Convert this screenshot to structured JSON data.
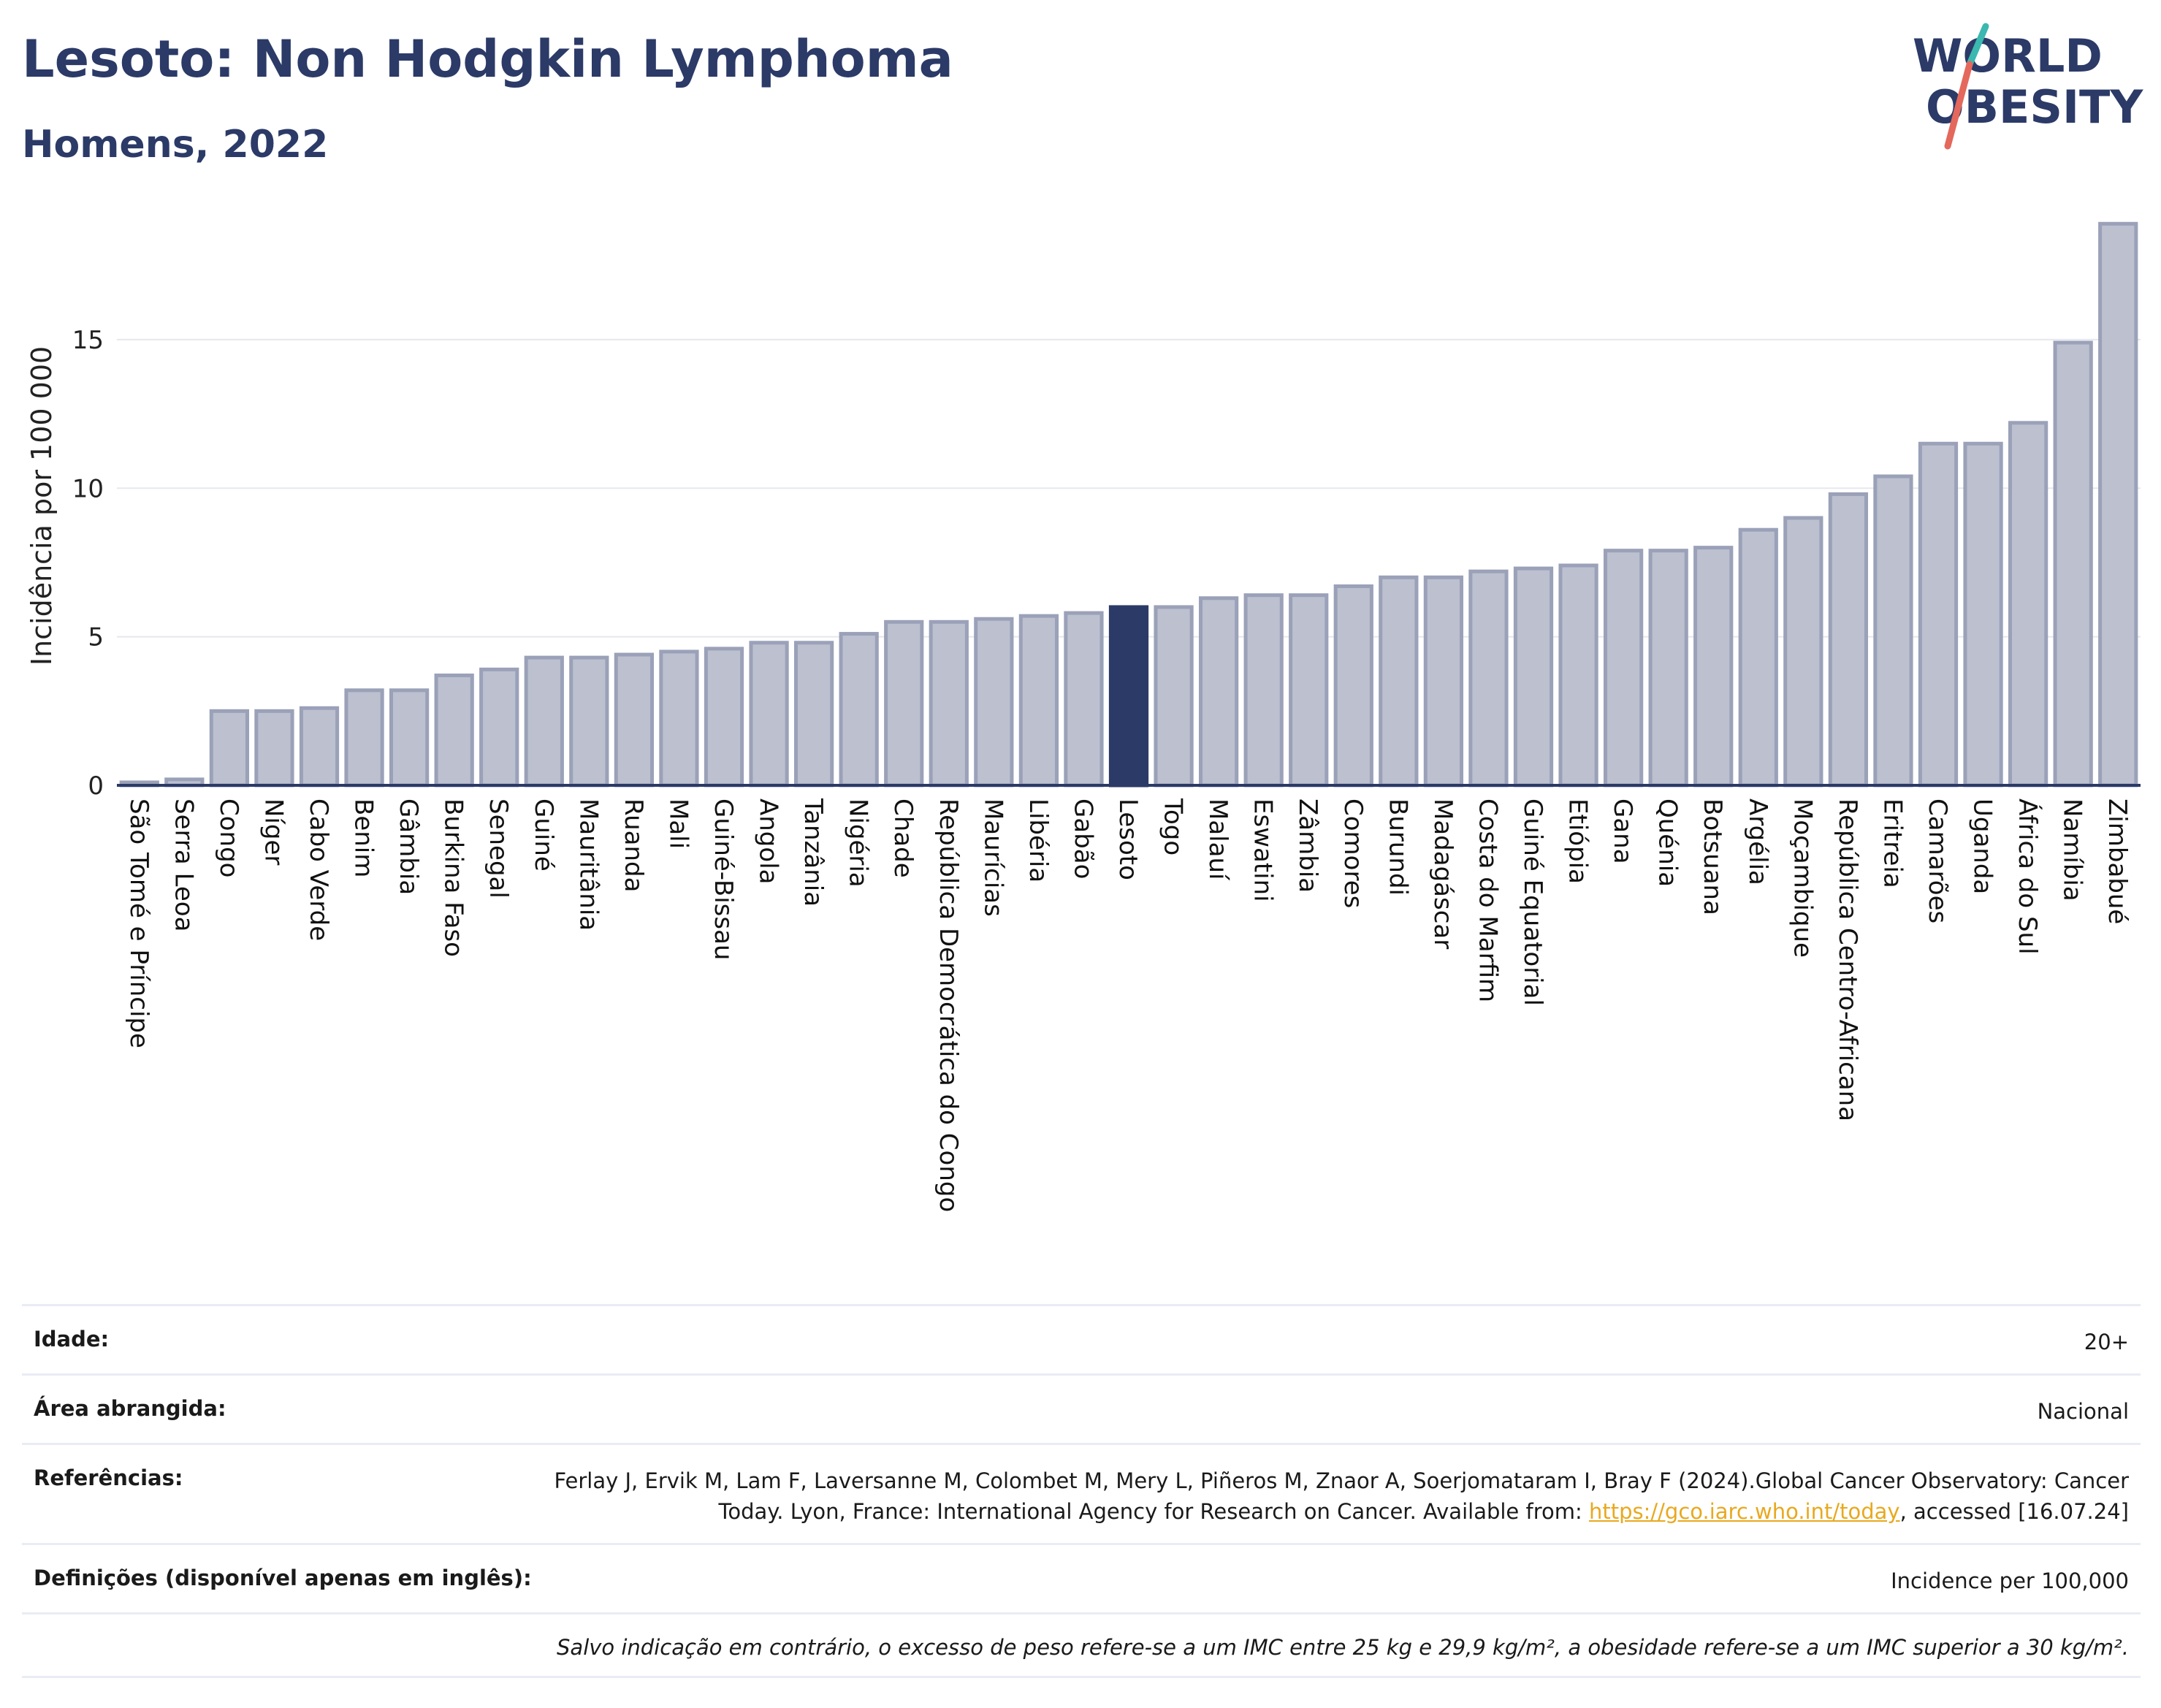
{
  "header": {
    "title": "Lesoto: Non Hodgkin Lymphoma",
    "subtitle": "Homens, 2022"
  },
  "logo": {
    "line1": "WORLD",
    "line2": "OBESITY",
    "colors": {
      "text": "#2b3a67",
      "slash_red": "#e4685b",
      "slash_teal": "#3bb8b0"
    }
  },
  "chart_data": {
    "type": "bar",
    "ylabel": "Incidência por 100 000",
    "ylim": [
      0,
      19.3
    ],
    "yticks": [
      0,
      5,
      10,
      15
    ],
    "grid": true,
    "highlight": "Lesoto",
    "colors": {
      "bar": "#bcc0cf",
      "bar_border": "#9aa1b8",
      "highlight": "#2b3a67",
      "grid": "#e6e8ee",
      "axis": "#2b3a67"
    },
    "categories": [
      "São Tomé e Príncipe",
      "Serra Leoa",
      "Congo",
      "Níger",
      "Cabo Verde",
      "Benim",
      "Gâmbia",
      "Burkina Faso",
      "Senegal",
      "Guiné",
      "Mauritânia",
      "Ruanda",
      "Mali",
      "Guiné-Bissau",
      "Angola",
      "Tanzânia",
      "Nigéria",
      "Chade",
      "República Democrática do Congo",
      "Maurícias",
      "Libéria",
      "Gabão",
      "Lesoto",
      "Togo",
      "Malauí",
      "Eswatini",
      "Zâmbia",
      "Comores",
      "Burundi",
      "Madagáscar",
      "Costa do Marfim",
      "Guiné Equatorial",
      "Etiópia",
      "Gana",
      "Quénia",
      "Botsuana",
      "Argélia",
      "Moçambique",
      "República Centro-Africana",
      "Eritreia",
      "Camarões",
      "Uganda",
      "África do Sul",
      "Namíbia",
      "Zimbabué"
    ],
    "values": [
      0.1,
      0.2,
      2.5,
      2.5,
      2.6,
      3.2,
      3.2,
      3.7,
      3.9,
      4.3,
      4.3,
      4.4,
      4.5,
      4.6,
      4.8,
      4.8,
      5.1,
      5.5,
      5.5,
      5.6,
      5.7,
      5.8,
      6.0,
      6.0,
      6.3,
      6.4,
      6.4,
      6.7,
      7.0,
      7.0,
      7.2,
      7.3,
      7.4,
      7.9,
      7.9,
      8.0,
      8.6,
      9.0,
      9.8,
      10.4,
      11.5,
      11.5,
      12.2,
      14.9,
      18.9
    ]
  },
  "info": {
    "age_label": "Idade:",
    "age_value": "20+",
    "area_label": "Área abrangida:",
    "area_value": "Nacional",
    "refs_label": "Referências:",
    "refs_text": "Ferlay J, Ervik M, Lam F, Laversanne M, Colombet M, Mery L, Piñeros M, Znaor A, Soerjomataram I, Bray F (2024).Global Cancer Observatory: Cancer Today. Lyon, France: International Agency for Research on Cancer. Available from: ",
    "refs_link": "https://gco.iarc.who.int/today",
    "refs_suffix": ", accessed [16.07.24]",
    "defs_label": "Definições (disponível apenas em inglês):",
    "defs_value": "Incidence per 100,000",
    "note": "Salvo indicação em contrário, o excesso de peso refere-se a um IMC entre 25 kg e 29,9 kg/m², a obesidade refere-se a um IMC superior a 30 kg/m²."
  }
}
